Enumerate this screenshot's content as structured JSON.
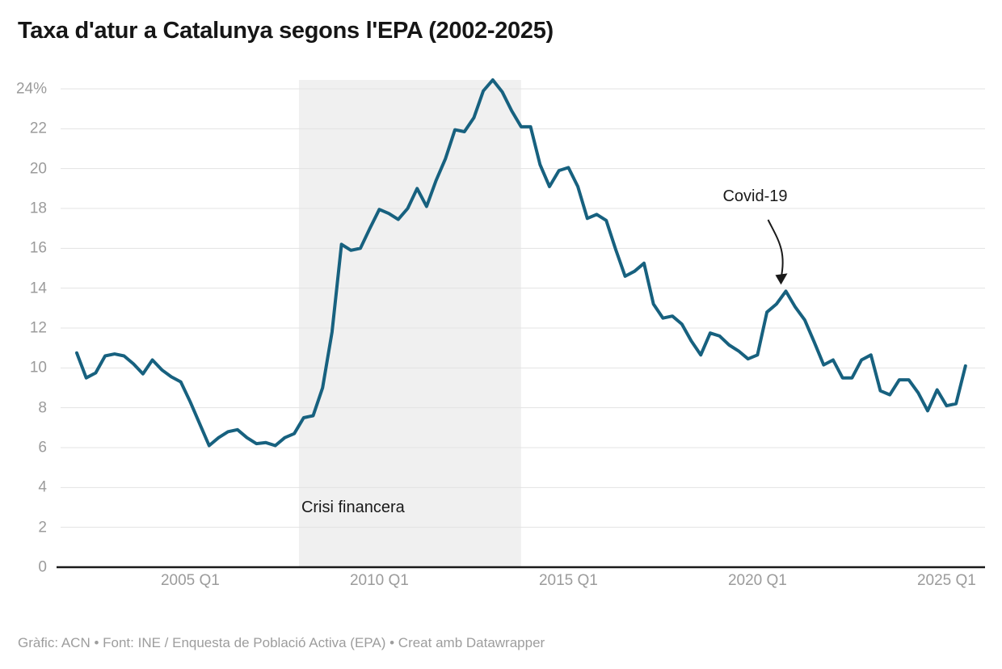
{
  "title": "Taxa d'atur a Catalunya segons l'EPA (2002-2025)",
  "footer": "Gràfic: ACN • Font: INE / Enquesta de Població Activa (EPA) • Creat amb Datawrapper",
  "colors": {
    "line": "#17617f",
    "band": "#f0f0f0",
    "grid": "#e3e3e3",
    "axis": "#1a1a1a",
    "tick_label": "#9b9b9b",
    "annotation": "#1a1a1a"
  },
  "chart_data": {
    "type": "line",
    "title": "Taxa d'atur a Catalunya segons l'EPA (2002-2025)",
    "unit": "%",
    "frequency": "quarterly",
    "x_start": "2002 Q1",
    "x_end": "2025 Q3",
    "ylim": [
      0,
      24.6
    ],
    "grid": true,
    "y_ticks": [
      {
        "value": 24,
        "label": "24%"
      },
      {
        "value": 22,
        "label": "22"
      },
      {
        "value": 20,
        "label": "20"
      },
      {
        "value": 18,
        "label": "18"
      },
      {
        "value": 16,
        "label": "16"
      },
      {
        "value": 14,
        "label": "14"
      },
      {
        "value": 12,
        "label": "12"
      },
      {
        "value": 10,
        "label": "10"
      },
      {
        "value": 8,
        "label": "8"
      },
      {
        "value": 6,
        "label": "6"
      },
      {
        "value": 4,
        "label": "4"
      },
      {
        "value": 2,
        "label": "2"
      },
      {
        "value": 0,
        "label": "0"
      }
    ],
    "x_tick_labels": [
      {
        "index": 12,
        "label": "2005 Q1"
      },
      {
        "index": 32,
        "label": "2010 Q1"
      },
      {
        "index": 52,
        "label": "2015 Q1"
      },
      {
        "index": 72,
        "label": "2020 Q1"
      },
      {
        "index": 92,
        "label": "2025 Q1"
      }
    ],
    "series": [
      {
        "name": "Taxa d'atur (%)",
        "values": [
          10.75,
          9.5,
          9.75,
          10.6,
          10.7,
          10.6,
          10.2,
          9.7,
          10.4,
          9.9,
          9.55,
          9.3,
          8.3,
          7.2,
          6.1,
          6.5,
          6.8,
          6.9,
          6.5,
          6.2,
          6.25,
          6.1,
          6.5,
          6.7,
          7.5,
          7.6,
          9.0,
          11.8,
          16.2,
          15.9,
          16.0,
          17.0,
          17.95,
          17.75,
          17.45,
          18.0,
          19.0,
          18.1,
          19.4,
          20.5,
          21.95,
          21.85,
          22.55,
          23.9,
          24.45,
          23.85,
          22.9,
          22.1,
          22.1,
          20.2,
          19.1,
          19.9,
          20.05,
          19.1,
          17.5,
          17.7,
          17.4,
          15.95,
          14.6,
          14.85,
          15.25,
          13.2,
          12.5,
          12.6,
          12.2,
          11.35,
          10.65,
          11.75,
          11.6,
          11.15,
          10.85,
          10.45,
          10.65,
          12.8,
          13.2,
          13.85,
          13.05,
          12.4,
          11.3,
          10.15,
          10.4,
          9.5,
          9.5,
          10.4,
          10.65,
          8.85,
          8.65,
          9.4,
          9.4,
          8.75,
          7.85,
          8.9,
          8.1,
          8.2,
          10.1
        ]
      }
    ],
    "annotations": {
      "crisis_band": {
        "label": "Crisi financera",
        "from_index": 23.5,
        "to_index": 47.0
      },
      "covid": {
        "label": "Covid-19",
        "point_index": 75,
        "value": 13.85
      }
    }
  }
}
